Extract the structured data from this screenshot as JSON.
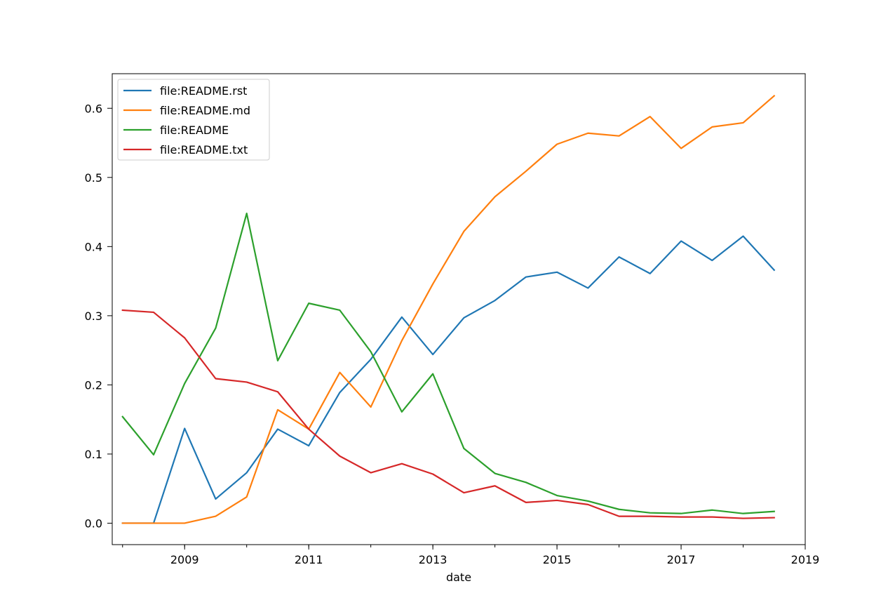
{
  "chart_data": {
    "type": "line",
    "title": "",
    "xlabel": "date",
    "ylabel": "",
    "x": [
      "2008-01",
      "2008-07",
      "2009-01",
      "2009-07",
      "2010-01",
      "2010-07",
      "2011-01",
      "2011-07",
      "2012-01",
      "2012-07",
      "2013-01",
      "2013-07",
      "2014-01",
      "2014-07",
      "2015-01",
      "2015-07",
      "2016-01",
      "2016-07",
      "2017-01",
      "2017-07",
      "2018-01",
      "2018-07"
    ],
    "xlim": [
      "2007-11",
      "2019-01"
    ],
    "xticks": [
      "2009",
      "2011",
      "2013",
      "2015",
      "2017",
      "2019"
    ],
    "ylim": [
      -0.031,
      0.65
    ],
    "yticks": [
      "0.0",
      "0.1",
      "0.2",
      "0.3",
      "0.4",
      "0.5",
      "0.6"
    ],
    "grid": false,
    "legend_position": "top-left",
    "series": [
      {
        "name": "file:README.rst",
        "color": "#1f77b4",
        "values": [
          0.0,
          0.0,
          0.137,
          0.035,
          0.073,
          0.136,
          0.112,
          0.189,
          0.237,
          0.298,
          0.244,
          0.297,
          0.322,
          0.356,
          0.363,
          0.34,
          0.385,
          0.361,
          0.408,
          0.38,
          0.415,
          0.366
        ]
      },
      {
        "name": "file:README.md",
        "color": "#ff7f0e",
        "values": [
          0.0,
          0.0,
          0.0,
          0.01,
          0.038,
          0.164,
          0.136,
          0.218,
          0.168,
          0.264,
          0.346,
          0.422,
          0.472,
          0.509,
          0.548,
          0.564,
          0.56,
          0.588,
          0.542,
          0.573,
          0.579,
          0.618
        ]
      },
      {
        "name": "file:README",
        "color": "#2ca02c",
        "values": [
          0.154,
          0.099,
          0.202,
          0.282,
          0.448,
          0.235,
          0.318,
          0.308,
          0.248,
          0.161,
          0.216,
          0.108,
          0.072,
          0.059,
          0.04,
          0.032,
          0.02,
          0.015,
          0.014,
          0.019,
          0.014,
          0.017
        ]
      },
      {
        "name": "file:README.txt",
        "color": "#d62728",
        "values": [
          0.308,
          0.305,
          0.268,
          0.209,
          0.204,
          0.19,
          0.136,
          0.097,
          0.073,
          0.086,
          0.071,
          0.044,
          0.054,
          0.03,
          0.033,
          0.027,
          0.01,
          0.01,
          0.009,
          0.009,
          0.007,
          0.008
        ]
      }
    ]
  }
}
